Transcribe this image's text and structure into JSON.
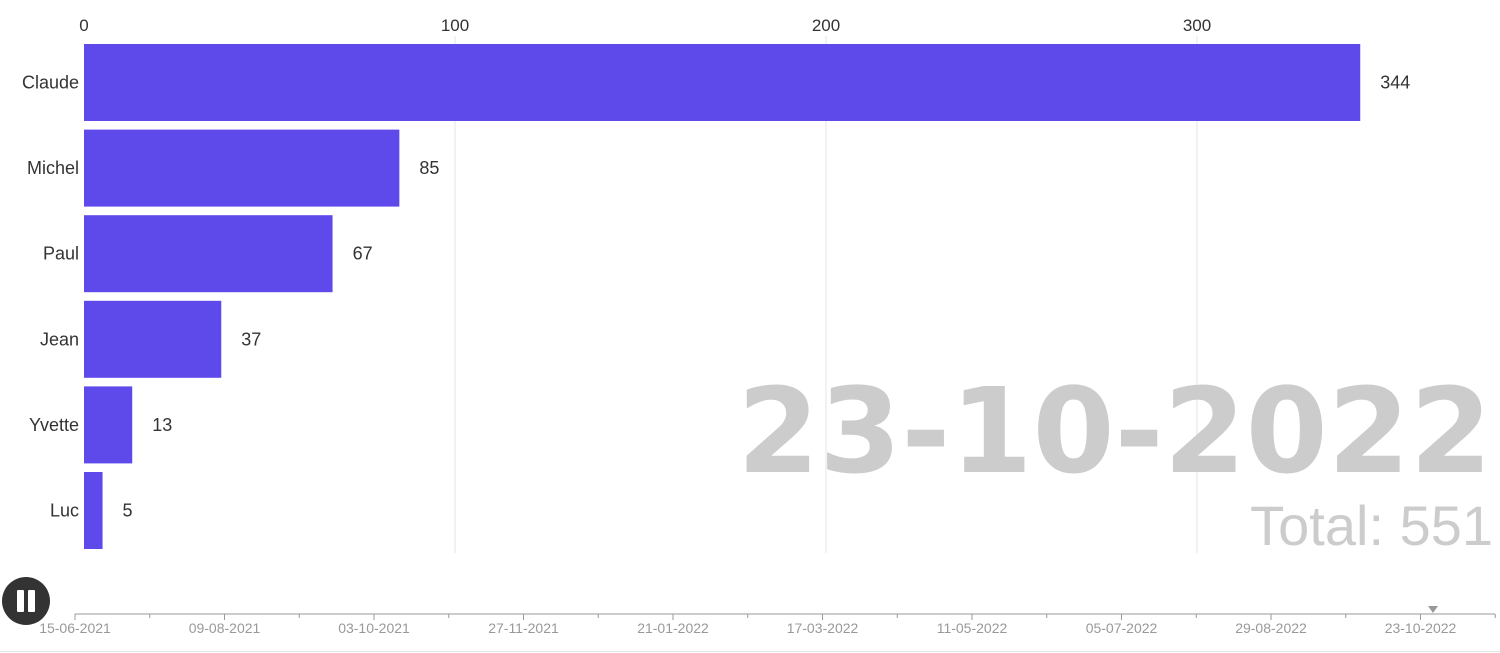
{
  "chart_data": {
    "type": "bar",
    "orientation": "horizontal",
    "categories": [
      "Claude",
      "Michel",
      "Paul",
      "Jean",
      "Yvette",
      "Luc"
    ],
    "values": [
      344,
      85,
      67,
      37,
      13,
      5
    ],
    "xlim": [
      0,
      350
    ],
    "xticks": [
      0,
      100,
      200,
      300
    ],
    "bar_color": "#5e4aea",
    "grid": true,
    "current_date": "23-10-2022",
    "total_label": "Total: 551"
  },
  "timeline": {
    "labels": [
      "15-06-2021",
      "09-08-2021",
      "03-10-2021",
      "27-11-2021",
      "21-01-2022",
      "17-03-2022",
      "11-05-2022",
      "05-07-2022",
      "29-08-2022",
      "23-10-2022"
    ],
    "position": 0.9
  },
  "controls": {
    "play_state": "playing",
    "icon": "pause-icon"
  }
}
